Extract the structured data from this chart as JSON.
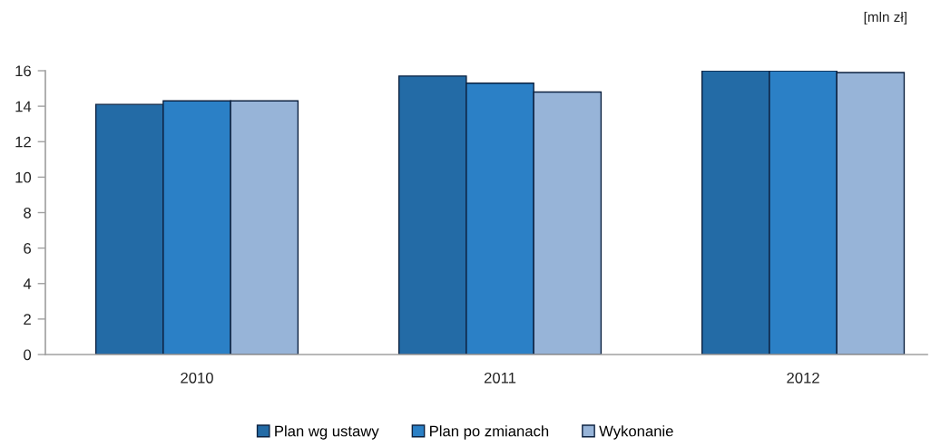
{
  "chart_data": {
    "type": "bar",
    "ylabel": "[mln zł]",
    "categories": [
      "2010",
      "2011",
      "2012"
    ],
    "series": [
      {
        "name": "Plan wg ustawy",
        "color": "#236ba6",
        "values": [
          14.1,
          15.7,
          16.0
        ]
      },
      {
        "name": "Plan po zmianach",
        "color": "#2b80c6",
        "values": [
          14.3,
          15.3,
          16.0
        ]
      },
      {
        "name": "Wykonanie",
        "color": "#97b4d8",
        "values": [
          14.3,
          14.8,
          15.9
        ]
      }
    ],
    "ylim": [
      0,
      16
    ],
    "yticks": [
      0,
      2,
      4,
      6,
      8,
      10,
      12,
      14,
      16
    ],
    "grid": false,
    "legend": "bottom"
  }
}
